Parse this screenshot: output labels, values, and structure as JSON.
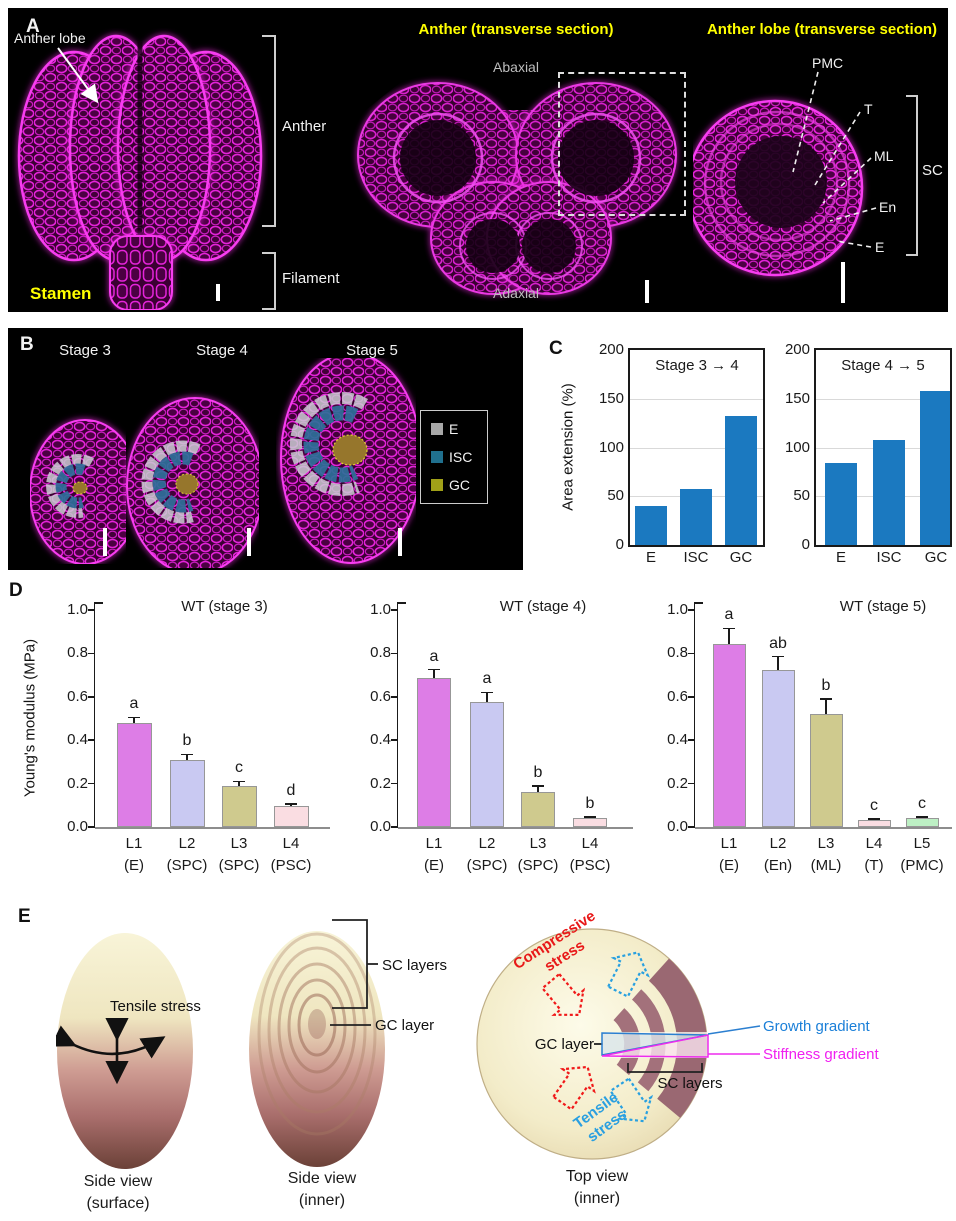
{
  "figure": {
    "panel_a": {
      "label": "A",
      "stamen_caption": "Stamen",
      "anther_lobe_label": "Anther lobe",
      "anther_label": "Anther",
      "filament_label": "Filament",
      "mid_title": "Anther (transverse section)",
      "abaxial": "Abaxial",
      "adaxial": "Adaxial",
      "right_title": "Anther lobe (transverse section)",
      "layers": {
        "pmc": "PMC",
        "t": "T",
        "ml": "ML",
        "en": "En",
        "e": "E",
        "sc": "SC"
      }
    },
    "panel_b": {
      "label": "B",
      "stages": [
        {
          "label": "Stage 3"
        },
        {
          "label": "Stage 4"
        },
        {
          "label": "Stage 5"
        }
      ],
      "legend": [
        {
          "label": "E",
          "color": "#a8a8a8"
        },
        {
          "label": "ISC",
          "color": "#20708e"
        },
        {
          "label": "GC",
          "color": "#a0a018"
        }
      ]
    },
    "panel_c": {
      "label": "C",
      "ylabel": "Area extension (%)"
    },
    "panel_d": {
      "label": "D",
      "ylabel": "Young's modulus (MPa)"
    },
    "panel_e": {
      "label": "E",
      "tensile_stress": "Tensile stress",
      "sc_layers_side": "SC layers",
      "gc_layer_side": "GC layer",
      "compressive": [
        "Compressive",
        "stress"
      ],
      "tensile2": [
        "Tensile",
        "stress"
      ],
      "gc_layer_top": "GC layer",
      "growth_gradient": "Growth gradient",
      "stiffness_gradient": "Stiffness gradient",
      "sc_layers_top": "SC layers",
      "captions": {
        "surface": [
          "Side view",
          "(surface)"
        ],
        "inner": [
          "Side view",
          "(inner)"
        ],
        "top": [
          "Top view",
          "(inner)"
        ]
      },
      "colors": {
        "compressive": "#e81818",
        "tensile": "#2a9fe0",
        "growth": "#1a7fd8",
        "stiffness": "#f020f0"
      }
    }
  },
  "chart_data": [
    {
      "id": "c1",
      "type": "bar",
      "panel": "C",
      "title": "Stage 3 → 4",
      "categories": [
        "E",
        "ISC",
        "GC"
      ],
      "values": [
        40,
        57,
        132
      ],
      "ylabel": "Area extension (%)",
      "ylim": [
        0,
        200
      ],
      "yticks": [
        0,
        50,
        100,
        150,
        200
      ],
      "grid": true,
      "bar_color": "#1b79c0",
      "legend_position": "none"
    },
    {
      "id": "c2",
      "type": "bar",
      "panel": "C",
      "title": "Stage 4 → 5",
      "categories": [
        "E",
        "ISC",
        "GC"
      ],
      "values": [
        84,
        108,
        158
      ],
      "ylabel": "Area extension (%)",
      "ylim": [
        0,
        200
      ],
      "yticks": [
        0,
        50,
        100,
        150,
        200
      ],
      "grid": true,
      "bar_color": "#1b79c0",
      "legend_position": "none"
    },
    {
      "id": "d1",
      "type": "bar",
      "panel": "D",
      "title": "WT (stage 3)",
      "categories": [
        "L1",
        "L2",
        "L3",
        "L4"
      ],
      "category_sub": [
        "(E)",
        "(SPC)",
        "(SPC)",
        "(PSC)"
      ],
      "values": [
        0.48,
        0.31,
        0.19,
        0.095
      ],
      "errors": [
        0.025,
        0.025,
        0.02,
        0.012
      ],
      "sig_letters": [
        "a",
        "b",
        "c",
        "d"
      ],
      "bar_colors": [
        "#dd7de6",
        "#c9c9f2",
        "#cfca8e",
        "#fadde2"
      ],
      "ylabel": "Young's modulus (MPa)",
      "ylim": [
        0,
        1.0
      ],
      "yticks": [
        0.0,
        0.2,
        0.4,
        0.6,
        0.8,
        1.0
      ],
      "grid": false
    },
    {
      "id": "d2",
      "type": "bar",
      "panel": "D",
      "title": "WT (stage 4)",
      "categories": [
        "L1",
        "L2",
        "L3",
        "L4"
      ],
      "category_sub": [
        "(E)",
        "(SPC)",
        "(SPC)",
        "(PSC)"
      ],
      "values": [
        0.685,
        0.575,
        0.16,
        0.04
      ],
      "errors": [
        0.04,
        0.045,
        0.03,
        0.006
      ],
      "sig_letters": [
        "a",
        "a",
        "b",
        "b"
      ],
      "bar_colors": [
        "#dd7de6",
        "#c9c9f2",
        "#cfca8e",
        "#fadde2"
      ],
      "ylabel": "Young's modulus (MPa)",
      "ylim": [
        0,
        1.0
      ],
      "yticks": [
        0.0,
        0.2,
        0.4,
        0.6,
        0.8,
        1.0
      ],
      "grid": false
    },
    {
      "id": "d3",
      "type": "bar",
      "panel": "D",
      "title": "WT (stage 5)",
      "categories": [
        "L1",
        "L2",
        "L3",
        "L4",
        "L5"
      ],
      "category_sub": [
        "(E)",
        "(En)",
        "(ML)",
        "(T)",
        "(PMC)"
      ],
      "values": [
        0.845,
        0.725,
        0.52,
        0.03,
        0.04
      ],
      "errors": [
        0.07,
        0.06,
        0.07,
        0.006,
        0.005
      ],
      "sig_letters": [
        "a",
        "ab",
        "b",
        "c",
        "c"
      ],
      "bar_colors": [
        "#dd7de6",
        "#c9c9f2",
        "#cfca8e",
        "#fadde2",
        "#bdf0c4"
      ],
      "ylabel": "Young's modulus (MPa)",
      "ylim": [
        0,
        1.0
      ],
      "yticks": [
        0.0,
        0.2,
        0.4,
        0.6,
        0.8,
        1.0
      ],
      "grid": false
    }
  ]
}
